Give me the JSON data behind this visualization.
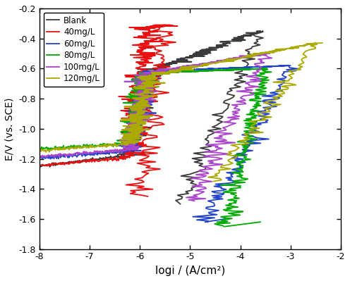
{
  "xlabel": "logi / (A/cm²)",
  "ylabel": "E/V (vs. SCE)",
  "xlim": [
    -8,
    -2
  ],
  "ylim": [
    -1.8,
    -0.2
  ],
  "xticks": [
    -8,
    -7,
    -6,
    -5,
    -4,
    -3,
    -2
  ],
  "yticks": [
    -1.8,
    -1.6,
    -1.4,
    -1.2,
    -1.0,
    -0.8,
    -0.6,
    -0.4,
    -0.2
  ],
  "legend_labels": [
    "Blank",
    "40mg/L",
    "60mg/L",
    "80mg/L",
    "100mg/L",
    "120mg/L"
  ],
  "colors": {
    "Blank": "#3a3a3a",
    "40mg/L": "#e81010",
    "60mg/L": "#2244cc",
    "80mg/L": "#00aa00",
    "100mg/L": "#aa44cc",
    "120mg/L": "#aaaa00"
  },
  "background_color": "#ffffff"
}
